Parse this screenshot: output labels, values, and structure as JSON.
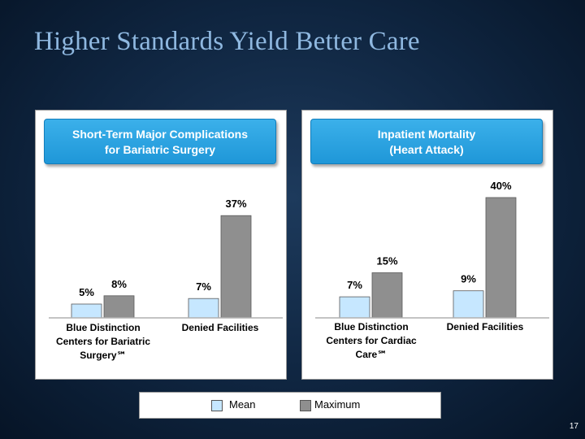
{
  "slide": {
    "title": "Higher Standards Yield Better Care",
    "page_number": "17"
  },
  "legend": {
    "mean_label": "Mean",
    "maximum_label": "Maximum"
  },
  "colors": {
    "mean": "#c6e7ff",
    "maximum": "#8f8f8f",
    "header": "#2aa3e0"
  },
  "chart_data": [
    {
      "type": "bar",
      "title_lines": [
        "Short-Term Major Complications",
        "for Bariatric Surgery"
      ],
      "categories": [
        {
          "lines": [
            "Blue Distinction",
            "Centers for Bariatric",
            "Surgery℠"
          ]
        },
        {
          "lines": [
            "Denied Facilities"
          ]
        }
      ],
      "series": [
        {
          "name": "Mean",
          "values": [
            5,
            7
          ],
          "labels": [
            "5%",
            "7%"
          ]
        },
        {
          "name": "Maximum",
          "values": [
            8,
            37
          ],
          "labels": [
            "8%",
            "37%"
          ]
        }
      ],
      "ylim": [
        0,
        40
      ]
    },
    {
      "type": "bar",
      "title_lines": [
        "Inpatient Mortality",
        "(Heart Attack)"
      ],
      "categories": [
        {
          "lines": [
            "Blue Distinction",
            "Centers for Cardiac",
            "Care℠"
          ]
        },
        {
          "lines": [
            "Denied Facilities"
          ]
        }
      ],
      "series": [
        {
          "name": "Mean",
          "values": [
            7,
            9
          ],
          "labels": [
            "7%",
            "9%"
          ]
        },
        {
          "name": "Maximum",
          "values": [
            15,
            40
          ],
          "labels": [
            "15%",
            "40%"
          ]
        }
      ],
      "ylim": [
        0,
        40
      ]
    }
  ]
}
